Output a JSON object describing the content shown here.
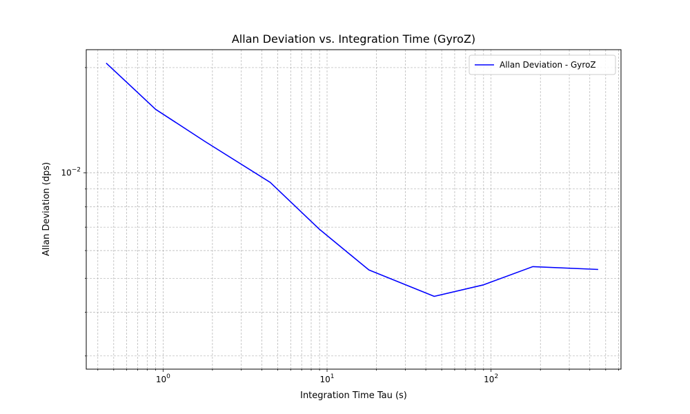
{
  "chart_data": {
    "type": "line",
    "title": "Allan Deviation vs. Integration Time (GyroZ)",
    "xlabel": "Integration Time Tau (s)",
    "ylabel": "Allan Deviation (dps)",
    "x_scale": "log",
    "y_scale": "log",
    "xlim": [
      0.34,
      620
    ],
    "ylim": [
      0.00275,
      0.0225
    ],
    "x_ticks": [
      {
        "value": 1,
        "base": "10",
        "exp": "0"
      },
      {
        "value": 10,
        "base": "10",
        "exp": "1"
      },
      {
        "value": 100,
        "base": "10",
        "exp": "2"
      }
    ],
    "y_ticks": [
      {
        "value": 0.01,
        "base": "10",
        "exp": "−2"
      }
    ],
    "grid": true,
    "legend_position": "upper right",
    "series": [
      {
        "name": "Allan Deviation - GyroZ",
        "color": "#0000ff",
        "x": [
          0.45,
          0.9,
          1.8,
          4.5,
          9.0,
          18,
          45,
          90,
          180,
          450
        ],
        "y": [
          0.0206,
          0.0152,
          0.0123,
          0.0094,
          0.0069,
          0.00528,
          0.00444,
          0.00479,
          0.0054,
          0.0053
        ]
      }
    ]
  }
}
